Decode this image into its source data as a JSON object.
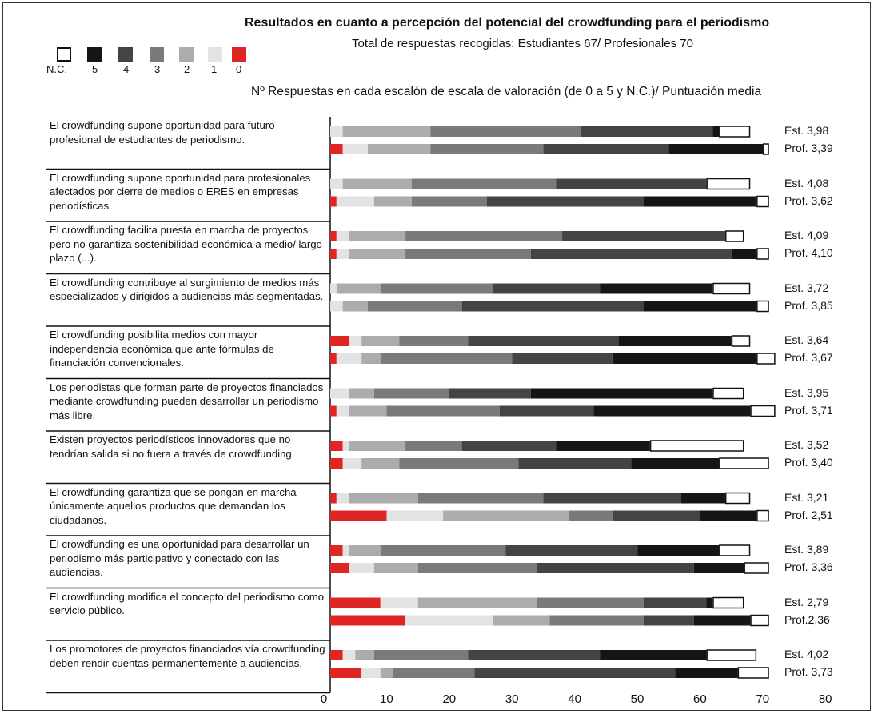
{
  "chart_data": {
    "type": "bar",
    "stacked": true,
    "orientation": "horizontal",
    "title": "Resultados en cuanto a percepción del potencial del crowdfunding para el periodismo",
    "subtitle": "Total de respuestas recogidas: Estudiantes 67/ Profesionales 70",
    "axis_note": "Nº Respuestas en cada escalón de escala de valoración (de 0 a 5 y N.C.)/ Puntuación media",
    "xlim": [
      0,
      80
    ],
    "xticks": [
      "0",
      "10",
      "20",
      "30",
      "40",
      "50",
      "60",
      "70",
      "80"
    ],
    "segment_order": [
      "0",
      "1",
      "2",
      "3",
      "4",
      "5",
      "N.C."
    ],
    "legend": [
      {
        "label": "N.C.",
        "color": "#ffffff"
      },
      {
        "label": "5",
        "color": "#151515"
      },
      {
        "label": "4",
        "color": "#444444"
      },
      {
        "label": "3",
        "color": "#7a7a7a"
      },
      {
        "label": "2",
        "color": "#acacac"
      },
      {
        "label": "1",
        "color": "#e3e3e3"
      },
      {
        "label": "0",
        "color": "#e02525"
      }
    ],
    "colors": {
      "0": "#e02525",
      "1": "#e3e3e3",
      "2": "#acacac",
      "3": "#7a7a7a",
      "4": "#444444",
      "5": "#151515",
      "N.C.": "#ffffff"
    },
    "questions": [
      {
        "label": "El crowdfunding supone oportunidad para futuro profesional de estudiantes de periodismo.",
        "est": {
          "score": "Est. 3,98",
          "counts": [
            0,
            2,
            14,
            24,
            21,
            1,
            5
          ]
        },
        "prof": {
          "score": "Prof. 3,39",
          "counts": [
            2,
            4,
            10,
            18,
            20,
            15,
            1
          ]
        }
      },
      {
        "label": "El crowdfunding supone oportunidad para profesionales afectados por cierre de medios o ERES en empresas periodísticas.",
        "est": {
          "score": "Est.  4,08",
          "counts": [
            0,
            2,
            11,
            23,
            24,
            0,
            7
          ]
        },
        "prof": {
          "score": "Prof. 3,62",
          "counts": [
            1,
            6,
            6,
            12,
            25,
            18,
            2
          ]
        }
      },
      {
        "label": "El crowdfunding facilita puesta en marcha de proyectos pero no garantiza sostenibilidad económica a medio/ largo plazo (...).",
        "est": {
          "score": "Est.  4,09",
          "counts": [
            1,
            2,
            9,
            25,
            26,
            0,
            3
          ]
        },
        "prof": {
          "score": "Prof. 4,10",
          "counts": [
            1,
            2,
            9,
            20,
            32,
            4,
            2
          ]
        }
      },
      {
        "label": "El crowdfunding contribuye al surgimiento de medios más especializados y dirigidos a audiencias más segmentadas.",
        "est": {
          "score": "Est.  3,72",
          "counts": [
            0,
            1,
            7,
            18,
            17,
            18,
            6
          ]
        },
        "prof": {
          "score": "Prof. 3,85",
          "counts": [
            0,
            2,
            4,
            15,
            29,
            18,
            2
          ]
        }
      },
      {
        "label": "El crowdfunding posibilita medios con mayor independencia económica que ante fórmulas de financiación convencionales.",
        "est": {
          "score": "Est.  3,64",
          "counts": [
            3,
            2,
            6,
            11,
            24,
            18,
            3
          ]
        },
        "prof": {
          "score": "Prof. 3,67",
          "counts": [
            1,
            4,
            3,
            21,
            16,
            23,
            3
          ]
        }
      },
      {
        "label": "Los periodistas que forman parte de proyectos financiados mediante crowdfunding pueden desarrollar un periodismo más libre.",
        "est": {
          "score": "Est.  3,95",
          "counts": [
            0,
            3,
            4,
            12,
            13,
            29,
            5
          ]
        },
        "prof": {
          "score": "Prof. 3,71",
          "counts": [
            1,
            2,
            6,
            18,
            15,
            25,
            4
          ]
        }
      },
      {
        "label": "Existen proyectos periodísticos innovadores que no tendrían salida si no fuera a través de crowdfunding.",
        "est": {
          "score": "Est.  3,52",
          "counts": [
            2,
            1,
            9,
            9,
            15,
            15,
            15
          ]
        },
        "prof": {
          "score": "Prof. 3,40",
          "counts": [
            2,
            3,
            6,
            19,
            18,
            14,
            8
          ]
        }
      },
      {
        "label": "El crowdfunding garantiza que se pongan en marcha únicamente aquellos productos que demandan los ciudadanos.",
        "est": {
          "score": "Est.  3,21",
          "counts": [
            1,
            2,
            11,
            20,
            22,
            7,
            4
          ]
        },
        "prof": {
          "score": "Prof. 2,51",
          "counts": [
            9,
            9,
            20,
            7,
            14,
            9,
            2
          ]
        }
      },
      {
        "label": "El crowdfunding es una oportunidad para desarrollar un periodismo más participativo y conectado con las audiencias.",
        "est": {
          "score": "Est.  3,89",
          "counts": [
            2,
            1,
            5,
            20,
            21,
            13,
            5
          ]
        },
        "prof": {
          "score": "Prof. 3,36",
          "counts": [
            3,
            4,
            7,
            19,
            25,
            8,
            4
          ]
        }
      },
      {
        "label": "El crowdfunding modifica el concepto del periodismo como servicio público.",
        "est": {
          "score": "Est. 2,79",
          "counts": [
            8,
            6,
            19,
            17,
            10,
            1,
            5
          ]
        },
        "prof": {
          "score": "Prof.2,36",
          "counts": [
            12,
            14,
            9,
            15,
            8,
            9,
            3
          ]
        }
      },
      {
        "label": "Los promotores de proyectos financiados vía crowdfunding deben rendir cuentas permanentemente a audiencias.",
        "est": {
          "score": "Est.  4,02",
          "counts": [
            2,
            2,
            3,
            15,
            21,
            17,
            8
          ]
        },
        "prof": {
          "score": "Prof. 3,73",
          "counts": [
            5,
            3,
            2,
            13,
            32,
            10,
            5
          ]
        }
      }
    ]
  }
}
